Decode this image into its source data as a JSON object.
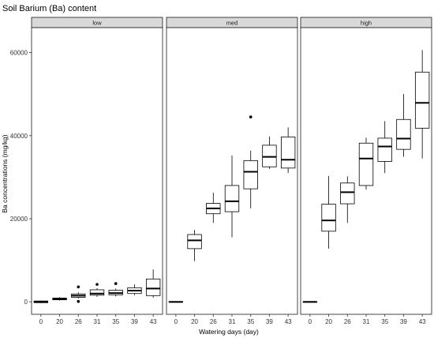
{
  "chart_data": {
    "type": "boxplot",
    "title": "Soil Barium (Ba) content",
    "xlabel": "Watering days (day)",
    "ylabel": "Ba concentrations (mg/kg)",
    "ylim": [
      -3000,
      66000
    ],
    "yticks": [
      0,
      20000,
      40000,
      60000
    ],
    "categories": [
      "0",
      "20",
      "26",
      "31",
      "35",
      "39",
      "43"
    ],
    "panels": [
      {
        "name": "low",
        "boxes": [
          {
            "x": "0",
            "min": -300,
            "q1": -200,
            "median": 0,
            "q3": 200,
            "max": 300,
            "outliers": []
          },
          {
            "x": "20",
            "min": 300,
            "q1": 500,
            "median": 700,
            "q3": 900,
            "max": 1100,
            "outliers": []
          },
          {
            "x": "26",
            "min": 800,
            "q1": 1100,
            "median": 1500,
            "q3": 1900,
            "max": 2300,
            "outliers": [
              3600,
              100
            ]
          },
          {
            "x": "31",
            "min": 1200,
            "q1": 1600,
            "median": 2000,
            "q3": 2900,
            "max": 3300,
            "outliers": [
              4200
            ]
          },
          {
            "x": "35",
            "min": 1300,
            "q1": 1700,
            "median": 2100,
            "q3": 2800,
            "max": 3200,
            "outliers": [
              4400
            ]
          },
          {
            "x": "39",
            "min": 1600,
            "q1": 2000,
            "median": 2700,
            "q3": 3400,
            "max": 4200,
            "outliers": []
          },
          {
            "x": "43",
            "min": 1000,
            "q1": 1500,
            "median": 3200,
            "q3": 5500,
            "max": 7800,
            "outliers": []
          }
        ]
      },
      {
        "name": "med",
        "boxes": [
          {
            "x": "0",
            "min": 0,
            "q1": 0,
            "median": 0,
            "q3": 0,
            "max": 0,
            "outliers": []
          },
          {
            "x": "20",
            "min": 9800,
            "q1": 12800,
            "median": 14800,
            "q3": 16200,
            "max": 17300,
            "outliers": []
          },
          {
            "x": "26",
            "min": 19000,
            "q1": 21200,
            "median": 22500,
            "q3": 23700,
            "max": 26300,
            "outliers": []
          },
          {
            "x": "31",
            "min": 15500,
            "q1": 21700,
            "median": 24200,
            "q3": 28000,
            "max": 35200,
            "outliers": []
          },
          {
            "x": "35",
            "min": 22500,
            "q1": 27200,
            "median": 31300,
            "q3": 34000,
            "max": 36400,
            "outliers": [
              44500
            ]
          },
          {
            "x": "39",
            "min": 32000,
            "q1": 32500,
            "median": 34900,
            "q3": 37700,
            "max": 39800,
            "outliers": []
          },
          {
            "x": "43",
            "min": 31000,
            "q1": 32200,
            "median": 34200,
            "q3": 39700,
            "max": 42000,
            "outliers": []
          }
        ]
      },
      {
        "name": "high",
        "boxes": [
          {
            "x": "0",
            "min": 0,
            "q1": 0,
            "median": 0,
            "q3": 0,
            "max": 0,
            "outliers": []
          },
          {
            "x": "20",
            "min": 12800,
            "q1": 17000,
            "median": 19600,
            "q3": 23500,
            "max": 30300,
            "outliers": []
          },
          {
            "x": "26",
            "min": 19000,
            "q1": 23600,
            "median": 26400,
            "q3": 28600,
            "max": 30200,
            "outliers": []
          },
          {
            "x": "31",
            "min": 27000,
            "q1": 28000,
            "median": 34500,
            "q3": 38200,
            "max": 39500,
            "outliers": []
          },
          {
            "x": "35",
            "min": 31000,
            "q1": 33800,
            "median": 37400,
            "q3": 39400,
            "max": 43500,
            "outliers": []
          },
          {
            "x": "39",
            "min": 34900,
            "q1": 36700,
            "median": 39300,
            "q3": 43900,
            "max": 50000,
            "outliers": []
          },
          {
            "x": "43",
            "min": 34500,
            "q1": 41800,
            "median": 47900,
            "q3": 55300,
            "max": 60600,
            "outliers": []
          }
        ]
      }
    ]
  }
}
